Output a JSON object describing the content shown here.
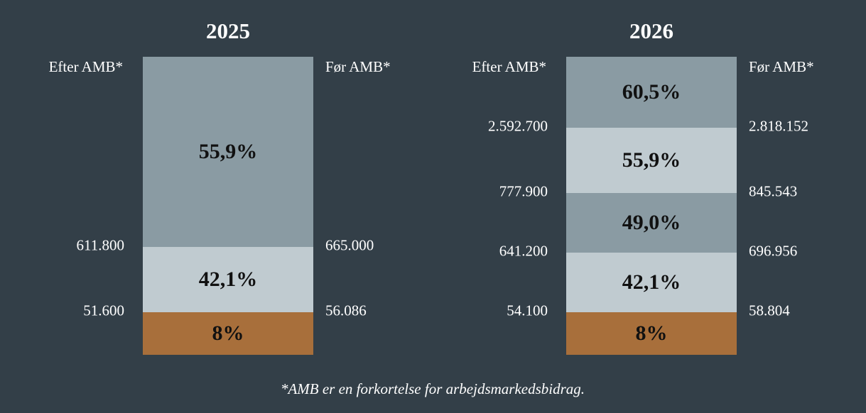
{
  "panels": [
    {
      "title": "2025",
      "left_heading": "Efter AMB*",
      "right_heading": "Før AMB*",
      "segments": [
        "55,9%",
        "42,1%",
        "8%"
      ],
      "thresholds": [
        {
          "after": "611.800",
          "before": "665.000"
        },
        {
          "after": "51.600",
          "before": "56.086"
        }
      ]
    },
    {
      "title": "2026",
      "left_heading": "Efter AMB*",
      "right_heading": "Før AMB*",
      "segments": [
        "60,5%",
        "55,9%",
        "49,0%",
        "42,1%",
        "8%"
      ],
      "thresholds": [
        {
          "after": "2.592.700",
          "before": "2.818.152"
        },
        {
          "after": "777.900",
          "before": "845.543"
        },
        {
          "after": "641.200",
          "before": "696.956"
        },
        {
          "after": "54.100",
          "before": "58.804"
        }
      ]
    }
  ],
  "footnote": "*AMB er en forkortelse for arbejdsmarkedsbidrag."
}
